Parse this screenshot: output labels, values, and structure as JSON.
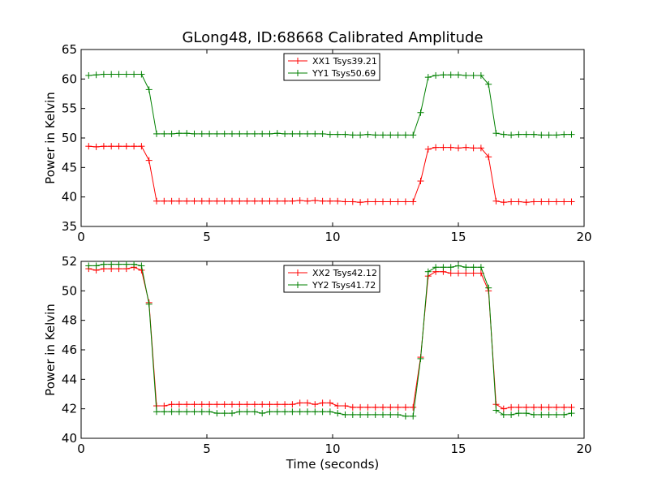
{
  "chart_data": [
    {
      "type": "line",
      "title": "GLong48, ID:68668 Calibrated Amplitude",
      "xlabel": "",
      "ylabel": "Power in Kelvin",
      "xlim": [
        0,
        20
      ],
      "ylim": [
        35,
        65
      ],
      "xticks": [
        0,
        5,
        10,
        15,
        20
      ],
      "yticks": [
        35,
        40,
        45,
        50,
        55,
        60,
        65
      ],
      "grid": false,
      "legend_position": "top-center",
      "x": [
        0.3,
        0.6,
        0.9,
        1.2,
        1.5,
        1.8,
        2.1,
        2.4,
        2.7,
        3.0,
        3.3,
        3.6,
        3.9,
        4.2,
        4.5,
        4.8,
        5.1,
        5.4,
        5.7,
        6.0,
        6.3,
        6.6,
        6.9,
        7.2,
        7.5,
        7.8,
        8.1,
        8.4,
        8.7,
        9.0,
        9.3,
        9.6,
        9.9,
        10.2,
        10.5,
        10.8,
        11.1,
        11.4,
        11.7,
        12.0,
        12.3,
        12.6,
        12.9,
        13.2,
        13.5,
        13.8,
        14.1,
        14.4,
        14.7,
        15.0,
        15.3,
        15.6,
        15.9,
        16.2,
        16.5,
        16.8,
        17.1,
        17.4,
        17.7,
        18.0,
        18.3,
        18.6,
        18.9,
        19.2,
        19.5
      ],
      "series": [
        {
          "name": "XX1 Tsys39.21",
          "color": "#ff0000",
          "values": [
            48.6,
            48.5,
            48.6,
            48.6,
            48.6,
            48.6,
            48.6,
            48.6,
            46.2,
            39.3,
            39.3,
            39.3,
            39.3,
            39.3,
            39.3,
            39.3,
            39.3,
            39.3,
            39.3,
            39.3,
            39.3,
            39.3,
            39.3,
            39.3,
            39.3,
            39.3,
            39.3,
            39.3,
            39.4,
            39.3,
            39.4,
            39.3,
            39.3,
            39.3,
            39.2,
            39.2,
            39.1,
            39.2,
            39.2,
            39.2,
            39.2,
            39.2,
            39.2,
            39.2,
            42.7,
            48.1,
            48.4,
            48.4,
            48.4,
            48.3,
            48.4,
            48.3,
            48.3,
            46.8,
            39.3,
            39.1,
            39.2,
            39.2,
            39.1,
            39.2,
            39.2,
            39.2,
            39.2,
            39.2,
            39.2
          ]
        },
        {
          "name": "YY1 Tsys50.69",
          "color": "#008000",
          "values": [
            60.6,
            60.7,
            60.8,
            60.8,
            60.8,
            60.8,
            60.8,
            60.8,
            58.2,
            50.7,
            50.7,
            50.7,
            50.8,
            50.8,
            50.7,
            50.7,
            50.7,
            50.7,
            50.7,
            50.7,
            50.7,
            50.7,
            50.7,
            50.7,
            50.7,
            50.8,
            50.7,
            50.7,
            50.7,
            50.7,
            50.7,
            50.7,
            50.6,
            50.6,
            50.6,
            50.5,
            50.5,
            50.6,
            50.5,
            50.5,
            50.5,
            50.5,
            50.5,
            50.5,
            54.3,
            60.3,
            60.6,
            60.7,
            60.7,
            60.7,
            60.6,
            60.6,
            60.6,
            59.1,
            50.8,
            50.6,
            50.5,
            50.6,
            50.6,
            50.6,
            50.5,
            50.5,
            50.5,
            50.6,
            50.6
          ]
        }
      ]
    },
    {
      "type": "line",
      "title": "",
      "xlabel": "Time (seconds)",
      "ylabel": "Power in Kelvin",
      "xlim": [
        0,
        20
      ],
      "ylim": [
        40,
        52
      ],
      "xticks": [
        0,
        5,
        10,
        15,
        20
      ],
      "yticks": [
        40,
        42,
        44,
        46,
        48,
        50,
        52
      ],
      "grid": false,
      "legend_position": "top-center",
      "x": [
        0.3,
        0.6,
        0.9,
        1.2,
        1.5,
        1.8,
        2.1,
        2.4,
        2.7,
        3.0,
        3.3,
        3.6,
        3.9,
        4.2,
        4.5,
        4.8,
        5.1,
        5.4,
        5.7,
        6.0,
        6.3,
        6.6,
        6.9,
        7.2,
        7.5,
        7.8,
        8.1,
        8.4,
        8.7,
        9.0,
        9.3,
        9.6,
        9.9,
        10.2,
        10.5,
        10.8,
        11.1,
        11.4,
        11.7,
        12.0,
        12.3,
        12.6,
        12.9,
        13.2,
        13.5,
        13.8,
        14.1,
        14.4,
        14.7,
        15.0,
        15.3,
        15.6,
        15.9,
        16.2,
        16.5,
        16.8,
        17.1,
        17.4,
        17.7,
        18.0,
        18.3,
        18.6,
        18.9,
        19.2,
        19.5
      ],
      "series": [
        {
          "name": "XX2 Tsys42.12",
          "color": "#ff0000",
          "values": [
            51.5,
            51.4,
            51.5,
            51.5,
            51.5,
            51.5,
            51.6,
            51.4,
            49.2,
            42.2,
            42.2,
            42.3,
            42.3,
            42.3,
            42.3,
            42.3,
            42.3,
            42.3,
            42.3,
            42.3,
            42.3,
            42.3,
            42.3,
            42.3,
            42.3,
            42.3,
            42.3,
            42.3,
            42.4,
            42.4,
            42.3,
            42.4,
            42.4,
            42.2,
            42.2,
            42.1,
            42.1,
            42.1,
            42.1,
            42.1,
            42.1,
            42.1,
            42.1,
            42.1,
            45.5,
            51.0,
            51.3,
            51.3,
            51.2,
            51.2,
            51.2,
            51.2,
            51.2,
            50.0,
            42.3,
            42.0,
            42.1,
            42.1,
            42.1,
            42.1,
            42.1,
            42.1,
            42.1,
            42.1,
            42.1
          ]
        },
        {
          "name": "YY2 Tsys41.72",
          "color": "#008000",
          "values": [
            51.7,
            51.7,
            51.8,
            51.8,
            51.8,
            51.8,
            51.8,
            51.7,
            49.1,
            41.8,
            41.8,
            41.8,
            41.8,
            41.8,
            41.8,
            41.8,
            41.8,
            41.7,
            41.7,
            41.7,
            41.8,
            41.8,
            41.8,
            41.7,
            41.8,
            41.8,
            41.8,
            41.8,
            41.8,
            41.8,
            41.8,
            41.8,
            41.8,
            41.7,
            41.6,
            41.6,
            41.6,
            41.6,
            41.6,
            41.6,
            41.6,
            41.6,
            41.5,
            41.5,
            45.4,
            51.3,
            51.6,
            51.6,
            51.6,
            51.7,
            51.6,
            51.6,
            51.6,
            50.2,
            41.9,
            41.6,
            41.6,
            41.7,
            41.7,
            41.6,
            41.6,
            41.6,
            41.6,
            41.6,
            41.7
          ]
        }
      ]
    }
  ]
}
